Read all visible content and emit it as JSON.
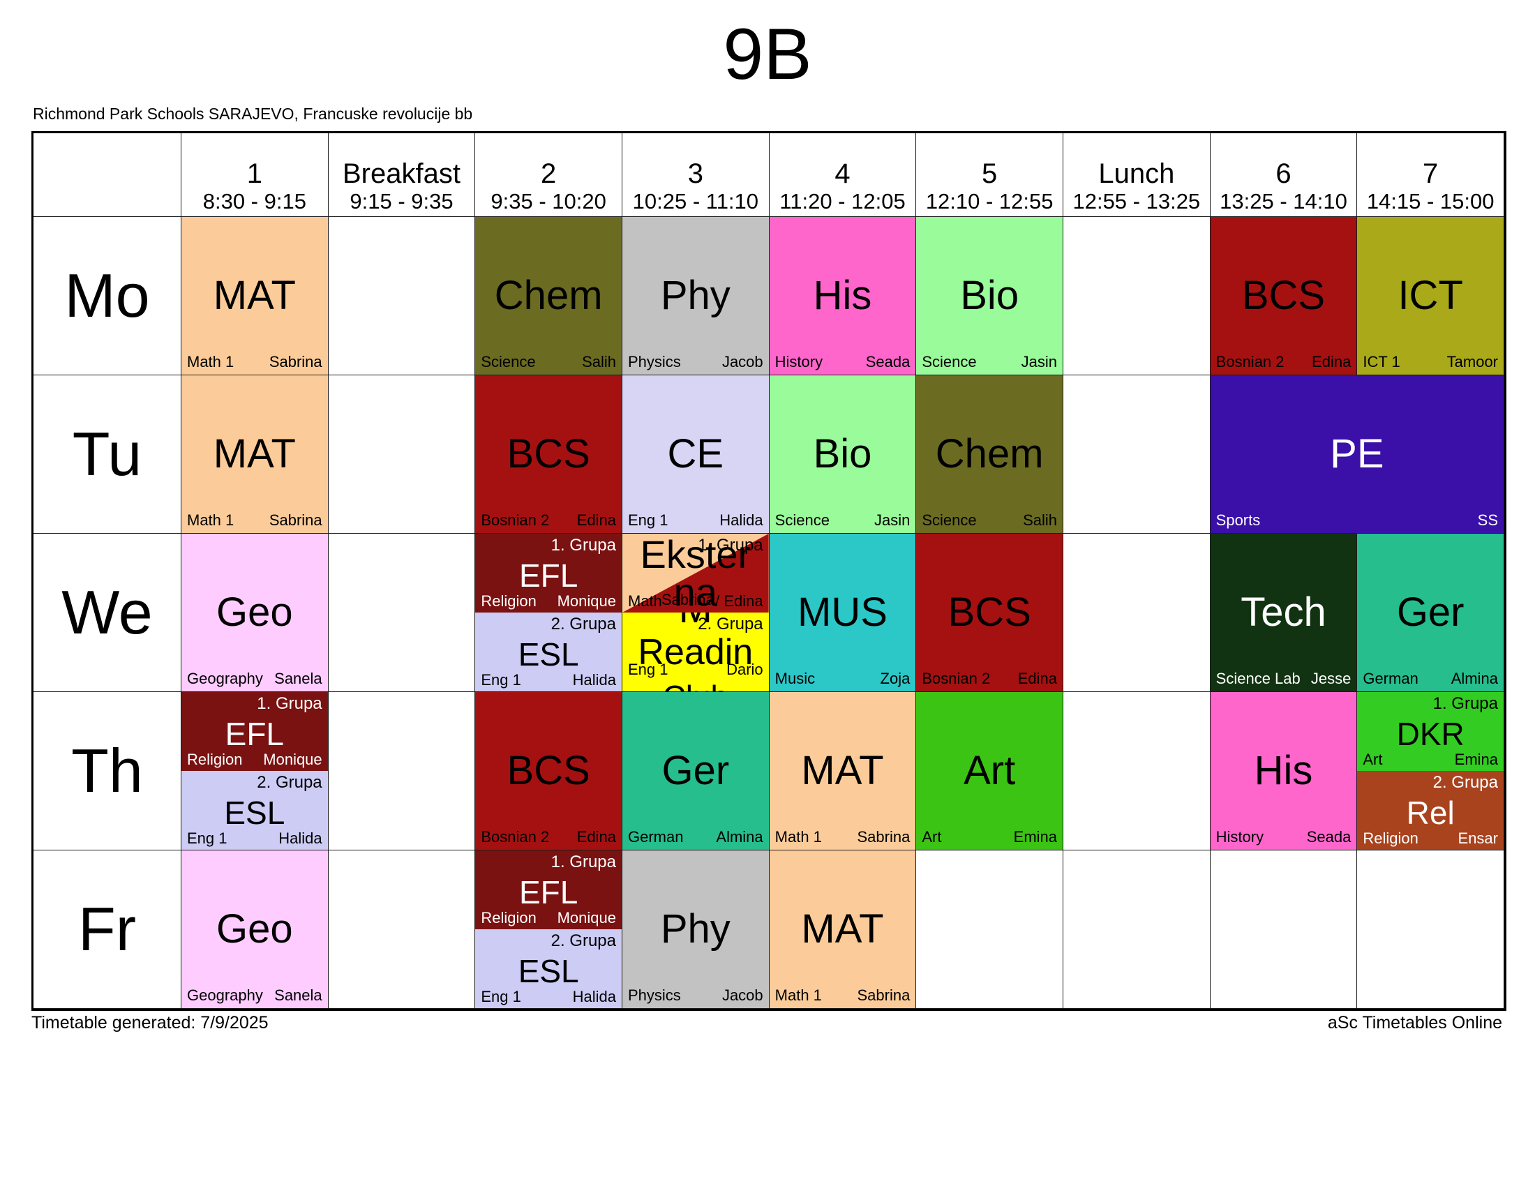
{
  "page": {
    "title": "9B",
    "school": "Richmond Park Schools SARAJEVO, Francuske revolucije bb",
    "footer_left": "Timetable generated: 7/9/2025",
    "footer_right": "aSc Timetables Online"
  },
  "columns": [
    {
      "label": "1",
      "time": "8:30 - 9:15"
    },
    {
      "label": "Breakfast",
      "time": "9:15 - 9:35"
    },
    {
      "label": "2",
      "time": "9:35 - 10:20"
    },
    {
      "label": "3",
      "time": "10:25 - 11:10"
    },
    {
      "label": "4",
      "time": "11:20 - 12:05"
    },
    {
      "label": "5",
      "time": "12:10 - 12:55"
    },
    {
      "label": "Lunch",
      "time": "12:55 - 13:25"
    },
    {
      "label": "6",
      "time": "13:25 - 14:10"
    },
    {
      "label": "7",
      "time": "14:15 - 15:00"
    }
  ],
  "days": [
    {
      "id": "mo",
      "label": "Mo"
    },
    {
      "id": "tu",
      "label": "Tu"
    },
    {
      "id": "we",
      "label": "We"
    },
    {
      "id": "th",
      "label": "Th"
    },
    {
      "id": "fr",
      "label": "Fr"
    }
  ],
  "cells": [
    {
      "day": "mo",
      "col": 0,
      "kind": "single",
      "big": "MAT",
      "room": "Math 1",
      "teacher": "Sabrina",
      "bg": "#FBCC99",
      "fg": "#000000"
    },
    {
      "day": "mo",
      "col": 2,
      "kind": "single",
      "big": "Chem",
      "room": "Science",
      "teacher": "Salih",
      "bg": "#6B6B22",
      "fg": "#000000"
    },
    {
      "day": "mo",
      "col": 3,
      "kind": "single",
      "big": "Phy",
      "room": "Physics",
      "teacher": "Jacob",
      "bg": "#C2C2C2",
      "fg": "#000000"
    },
    {
      "day": "mo",
      "col": 4,
      "kind": "single",
      "big": "His",
      "room": "History",
      "teacher": "Seada",
      "bg": "#FF66CC",
      "fg": "#000000"
    },
    {
      "day": "mo",
      "col": 5,
      "kind": "single",
      "big": "Bio",
      "room": "Science",
      "teacher": "Jasin",
      "bg": "#99FB99",
      "fg": "#000000"
    },
    {
      "day": "mo",
      "col": 7,
      "kind": "single",
      "big": "BCS",
      "room": "Bosnian 2",
      "teacher": "Edina",
      "bg": "#A51111",
      "fg": "#000000"
    },
    {
      "day": "mo",
      "col": 8,
      "kind": "single",
      "big": "ICT",
      "room": "ICT 1",
      "teacher": "Tamoor",
      "bg": "#A9A919",
      "fg": "#000000"
    },
    {
      "day": "tu",
      "col": 0,
      "kind": "single",
      "big": "MAT",
      "room": "Math 1",
      "teacher": "Sabrina",
      "bg": "#FBCC99",
      "fg": "#000000"
    },
    {
      "day": "tu",
      "col": 2,
      "kind": "single",
      "big": "BCS",
      "room": "Bosnian 2",
      "teacher": "Edina",
      "bg": "#A51111",
      "fg": "#000000"
    },
    {
      "day": "tu",
      "col": 3,
      "kind": "single",
      "big": "CE",
      "room": "Eng 1",
      "teacher": "Halida",
      "bg": "#D8D4F4",
      "fg": "#000000"
    },
    {
      "day": "tu",
      "col": 4,
      "kind": "single",
      "big": "Bio",
      "room": "Science",
      "teacher": "Jasin",
      "bg": "#99FB99",
      "fg": "#000000"
    },
    {
      "day": "tu",
      "col": 5,
      "kind": "single",
      "big": "Chem",
      "room": "Science",
      "teacher": "Salih",
      "bg": "#6B6B22",
      "fg": "#000000"
    },
    {
      "day": "tu",
      "col": 7,
      "colspan": 2,
      "kind": "single",
      "big": "PE",
      "room": "Sports",
      "teacher": "SS",
      "bg": "#3A10A8",
      "fg": "#FFFFFF"
    },
    {
      "day": "we",
      "col": 0,
      "kind": "single",
      "big": "Geo",
      "room": "Geography",
      "teacher": "Sanela",
      "bg": "#FFCCFF",
      "fg": "#000000"
    },
    {
      "day": "we",
      "col": 2,
      "kind": "split",
      "top": {
        "big": "EFL",
        "group": "1. Grupa",
        "room": "Religion",
        "teacher": "Monique",
        "bg": "#7A1212",
        "fg": "#FFFFFF"
      },
      "bottom": {
        "big": "ESL",
        "group": "2. Grupa",
        "room": "Eng 1",
        "teacher": "Halida",
        "bg": "#CCCCF5",
        "fg": "#000000"
      }
    },
    {
      "day": "we",
      "col": 3,
      "kind": "overlap",
      "top": {
        "bg": "#FBCC99",
        "triangle": "#A51111",
        "group": "1. Grupa",
        "big_line1": "Ekster",
        "big_line2": "na",
        "overlap_left": "Math",
        "overlap_mid": "Sabrina",
        "overlap_right": "/ Edina",
        "fg": "#000000"
      },
      "bottom": {
        "bg": "#FFFF00",
        "group": "2. Grupa",
        "big": "Readin",
        "big_clipped": "Club",
        "mat_fragment": "M",
        "room": "Eng 1",
        "teacher": "Dario",
        "fg": "#000000"
      }
    },
    {
      "day": "we",
      "col": 4,
      "kind": "single",
      "big": "MUS",
      "room": "Music",
      "teacher": "Zoja",
      "bg": "#2CC8C8",
      "fg": "#000000"
    },
    {
      "day": "we",
      "col": 5,
      "kind": "single",
      "big": "BCS",
      "room": "Bosnian 2",
      "teacher": "Edina",
      "bg": "#A51111",
      "fg": "#000000"
    },
    {
      "day": "we",
      "col": 7,
      "kind": "single",
      "big": "Tech",
      "room": "Science Lab",
      "teacher": "Jesse",
      "bg": "#123312",
      "fg": "#FFFFFF"
    },
    {
      "day": "we",
      "col": 8,
      "kind": "single",
      "big": "Ger",
      "room": "German",
      "teacher": "Almina",
      "bg": "#26BE8C",
      "fg": "#000000"
    },
    {
      "day": "th",
      "col": 0,
      "kind": "split",
      "top": {
        "big": "EFL",
        "group": "1. Grupa",
        "room": "Religion",
        "teacher": "Monique",
        "bg": "#7A1212",
        "fg": "#FFFFFF"
      },
      "bottom": {
        "big": "ESL",
        "group": "2. Grupa",
        "room": "Eng 1",
        "teacher": "Halida",
        "bg": "#CCCCF5",
        "fg": "#000000"
      }
    },
    {
      "day": "th",
      "col": 2,
      "kind": "single",
      "big": "BCS",
      "room": "Bosnian 2",
      "teacher": "Edina",
      "bg": "#A51111",
      "fg": "#000000"
    },
    {
      "day": "th",
      "col": 3,
      "kind": "single",
      "big": "Ger",
      "room": "German",
      "teacher": "Almina",
      "bg": "#26BE8C",
      "fg": "#000000"
    },
    {
      "day": "th",
      "col": 4,
      "kind": "single",
      "big": "MAT",
      "room": "Math 1",
      "teacher": "Sabrina",
      "bg": "#FBCC99",
      "fg": "#000000"
    },
    {
      "day": "th",
      "col": 5,
      "kind": "single",
      "big": "Art",
      "room": "Art",
      "teacher": "Emina",
      "bg": "#3CC414",
      "fg": "#000000"
    },
    {
      "day": "th",
      "col": 7,
      "kind": "single",
      "big": "His",
      "room": "History",
      "teacher": "Seada",
      "bg": "#FF66CC",
      "fg": "#000000"
    },
    {
      "day": "th",
      "col": 8,
      "kind": "split",
      "top": {
        "big": "DKR",
        "group": "1. Grupa",
        "room": "Art",
        "teacher": "Emina",
        "bg": "#33CC22",
        "fg": "#000000"
      },
      "bottom": {
        "big": "Rel",
        "group": "2. Grupa",
        "room": "Religion",
        "teacher": "Ensar",
        "bg": "#A8431E",
        "fg": "#FFFFFF"
      }
    },
    {
      "day": "fr",
      "col": 0,
      "kind": "single",
      "big": "Geo",
      "room": "Geography",
      "teacher": "Sanela",
      "bg": "#FFCCFF",
      "fg": "#000000"
    },
    {
      "day": "fr",
      "col": 2,
      "kind": "split",
      "top": {
        "big": "EFL",
        "group": "1. Grupa",
        "room": "Religion",
        "teacher": "Monique",
        "bg": "#7A1212",
        "fg": "#FFFFFF"
      },
      "bottom": {
        "big": "ESL",
        "group": "2. Grupa",
        "room": "Eng 1",
        "teacher": "Halida",
        "bg": "#CCCCF5",
        "fg": "#000000"
      }
    },
    {
      "day": "fr",
      "col": 3,
      "kind": "single",
      "big": "Phy",
      "room": "Physics",
      "teacher": "Jacob",
      "bg": "#C2C2C2",
      "fg": "#000000"
    },
    {
      "day": "fr",
      "col": 4,
      "kind": "single",
      "big": "MAT",
      "room": "Math 1",
      "teacher": "Sabrina",
      "bg": "#FBCC99",
      "fg": "#000000"
    }
  ]
}
